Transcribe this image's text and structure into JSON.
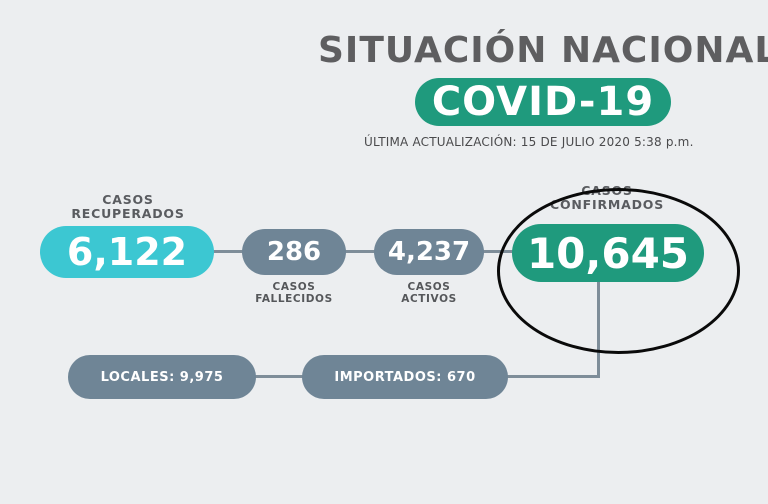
{
  "header": {
    "title": "SITUACIÓN NACIONAL",
    "badge": "COVID-19",
    "updated": "ÚLTIMA ACTUALIZACIÓN: 15 DE JULIO 2020 5:38 p.m."
  },
  "stats": {
    "recovered": {
      "label_line1": "CASOS",
      "label_line2": "RECUPERADOS",
      "value": "6,122",
      "color": "#3cc7d2"
    },
    "deaths": {
      "label_line1": "CASOS",
      "label_line2": "FALLECIDOS",
      "value": "286",
      "color": "#6f8596"
    },
    "active": {
      "label_line1": "CASOS",
      "label_line2": "ACTIVOS",
      "value": "4,237",
      "color": "#6f8596"
    },
    "confirmed": {
      "label_line1": "CASOS",
      "label_line2": "CONFIRMADOS",
      "value": "10,645",
      "color": "#1f9a7d"
    }
  },
  "breakdown": {
    "local": "LOCALES: 9,975",
    "imported": "IMPORTADOS: 670"
  }
}
